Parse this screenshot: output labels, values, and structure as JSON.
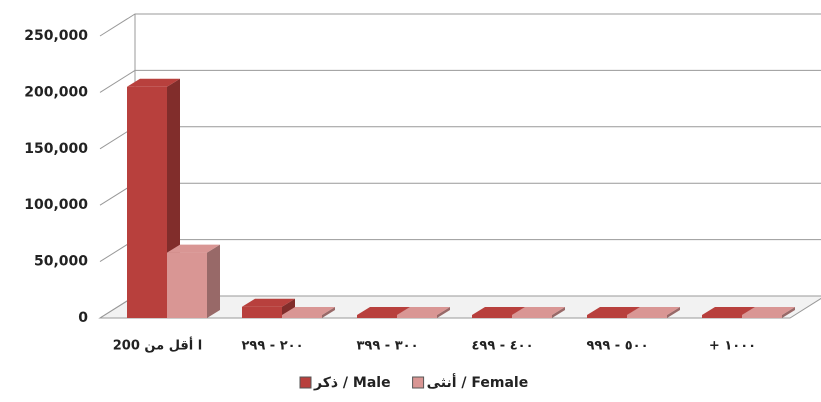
{
  "chart_data": {
    "type": "bar3d",
    "categories": [
      "ا أقل من 200",
      "٢٠٠ - ٢٩٩",
      "٣٠٠ - ٣٩٩",
      "٤٠٠ - ٤٩٩",
      "٥٠٠ - ٩٩٩",
      "١٠٠٠ +"
    ],
    "series": [
      {
        "name": "ذكر / Male",
        "color": "#b8403d",
        "values": [
          205000,
          10000,
          2000,
          1500,
          1500,
          1500
        ]
      },
      {
        "name": "أنثى / Female",
        "color": "#d99694",
        "values": [
          58000,
          1000,
          500,
          500,
          500,
          500
        ]
      }
    ],
    "ylim": [
      0,
      250000
    ],
    "yticks": [
      0,
      {
        "value": 50000,
        "label": "50,000"
      },
      {
        "value": 100000,
        "label": "100,000"
      },
      {
        "value": 150000,
        "label": "150,000"
      },
      {
        "value": 200000,
        "label": "200,000"
      },
      {
        "value": 250000,
        "label": "250,000"
      }
    ],
    "grid": true,
    "legend": "bottom"
  }
}
